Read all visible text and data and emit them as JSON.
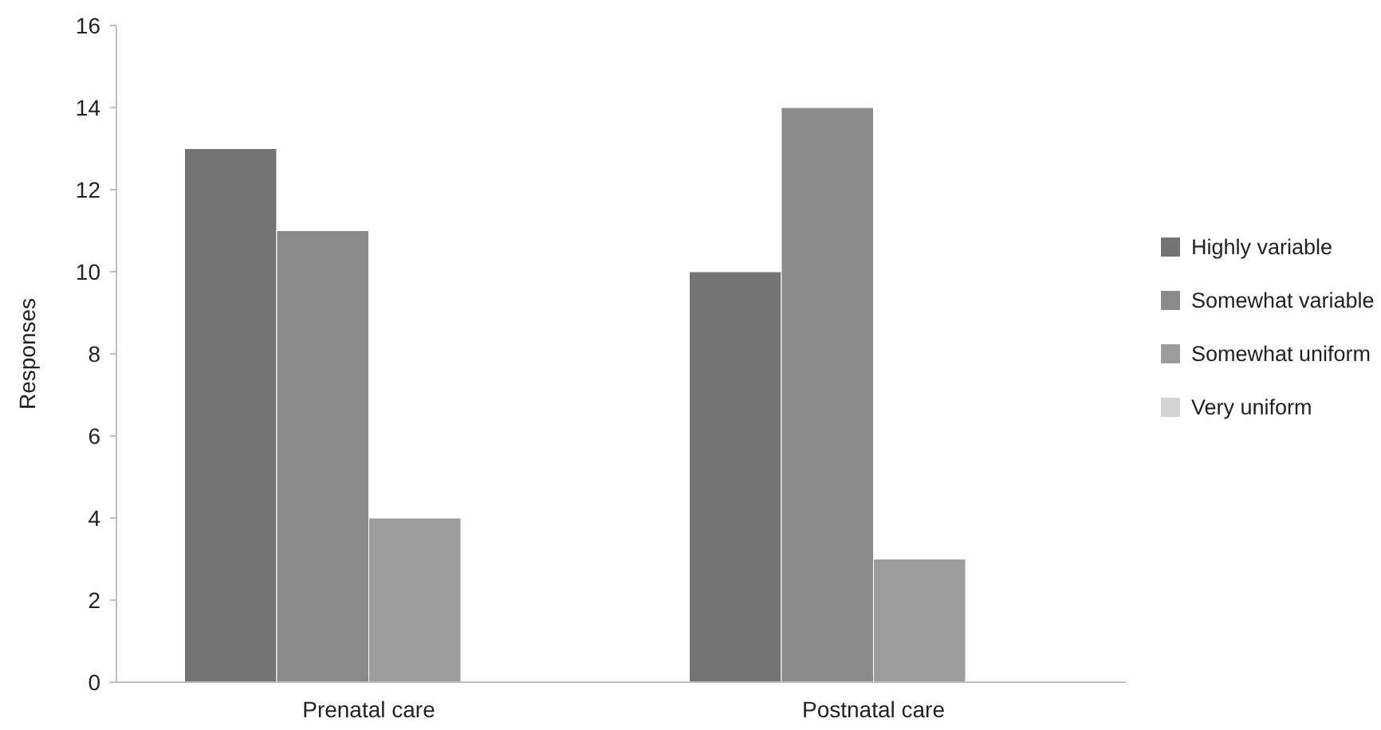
{
  "chart_data": {
    "type": "bar",
    "ylabel": "Responses",
    "categories": [
      "Prenatal care",
      "Postnatal care"
    ],
    "series": [
      {
        "name": "Highly variable",
        "color": "#737473",
        "values": [
          13,
          10
        ]
      },
      {
        "name": "Somewhat variable",
        "color": "#8a8a8a",
        "values": [
          11,
          14
        ]
      },
      {
        "name": "Somewhat uniform",
        "color": "#9b9c9b",
        "values": [
          4,
          3
        ]
      },
      {
        "name": "Very uniform",
        "color": "#d3d3d3",
        "values": [
          0,
          0
        ]
      }
    ],
    "ylim": [
      0,
      16
    ],
    "yticks": [
      0,
      2,
      4,
      6,
      8,
      10,
      12,
      14,
      16
    ],
    "grid": false,
    "legend": "right"
  }
}
